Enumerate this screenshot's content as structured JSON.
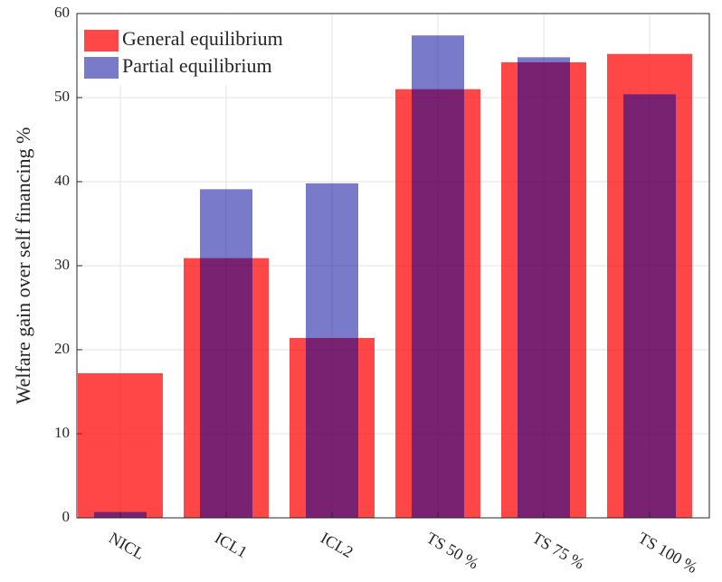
{
  "chart_data": {
    "type": "bar",
    "ylabel": "Welfare gain over self financing %",
    "categories": [
      "NICL",
      "ICL1",
      "ICL2",
      "TS 50 %",
      "TS 75 %",
      "TS 100 %"
    ],
    "series": [
      {
        "name": "General equilibrium",
        "color": "#ff0000",
        "values": [
          17.2,
          30.9,
          21.4,
          51.0,
          54.2,
          55.2
        ]
      },
      {
        "name": "Partial equilibrium",
        "color": "#00009a",
        "values": [
          0.7,
          39.1,
          39.8,
          57.4,
          54.8,
          50.4
        ]
      }
    ],
    "ylim": [
      0,
      60
    ],
    "yticks": [
      0,
      10,
      20,
      30,
      40,
      50,
      60
    ],
    "grid": true,
    "legend": "upper left"
  }
}
